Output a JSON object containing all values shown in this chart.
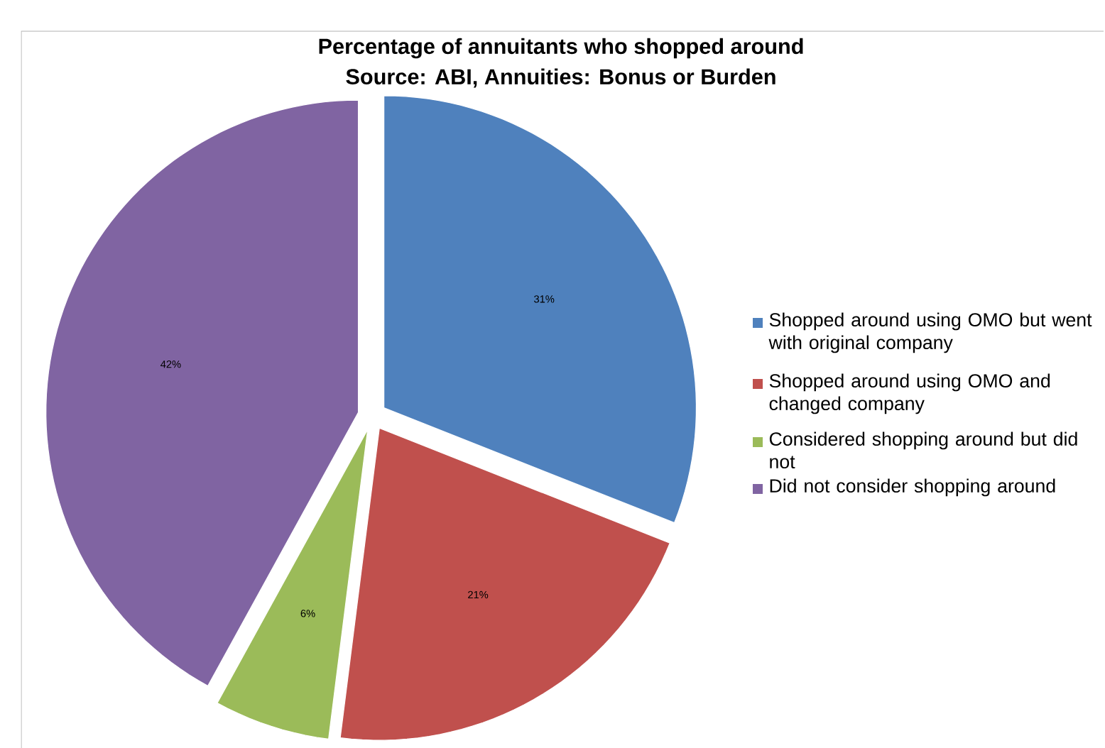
{
  "chart_data": {
    "type": "pie",
    "title": "Percentage of annuitants who shopped around",
    "subtitle": "Source: ABI, Annuities: Bonus or Burden",
    "categories": [
      "Shopped around using OMO but went with original company",
      "Shopped around using OMO and changed company",
      "Considered shopping around but did not",
      "Did not consider shopping around"
    ],
    "values": [
      31,
      21,
      6,
      42
    ],
    "value_labels": [
      "31%",
      "21%",
      "6%",
      "42%"
    ],
    "colors": [
      "#4f81bd",
      "#c0504d",
      "#9bbb59",
      "#8064a2"
    ],
    "legend": "right"
  }
}
